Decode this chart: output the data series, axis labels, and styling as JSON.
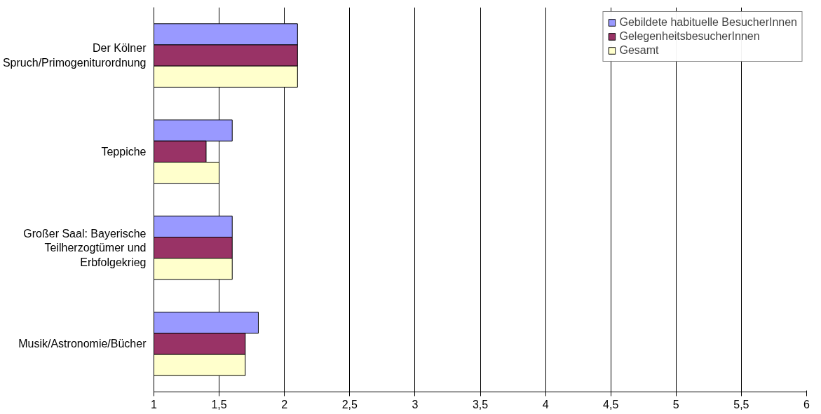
{
  "chart_data": {
    "type": "bar",
    "orientation": "horizontal",
    "categories": [
      "Der Kölner Spruch/Primogeniturordnung",
      "Teppiche",
      "Großer Saal: Bayerische Teilherzogtümer und Erbfolgekrieg",
      "Musik/Astronomie/Bücher"
    ],
    "series": [
      {
        "name": "Gebildete habituelle BesucherInnen",
        "color": "#9999ff",
        "values": [
          2.1,
          1.6,
          1.6,
          1.8
        ]
      },
      {
        "name": "GelegenheitsbesucherInnen",
        "color": "#993366",
        "values": [
          2.1,
          1.4,
          1.6,
          1.7
        ]
      },
      {
        "name": "Gesamt",
        "color": "#ffffcc",
        "values": [
          2.1,
          1.5,
          1.6,
          1.7
        ]
      }
    ],
    "xlim": [
      1,
      6
    ],
    "xticks": [
      1,
      {
        "value": 1.5,
        "label": "1,5"
      },
      2,
      {
        "value": 2.5,
        "label": "2,5"
      },
      3,
      {
        "value": 3.5,
        "label": "3,5"
      },
      4,
      {
        "value": 4.5,
        "label": "4,5"
      },
      5,
      {
        "value": 5.5,
        "label": "5,5"
      },
      6
    ],
    "grid": "x",
    "legend": "top right"
  }
}
